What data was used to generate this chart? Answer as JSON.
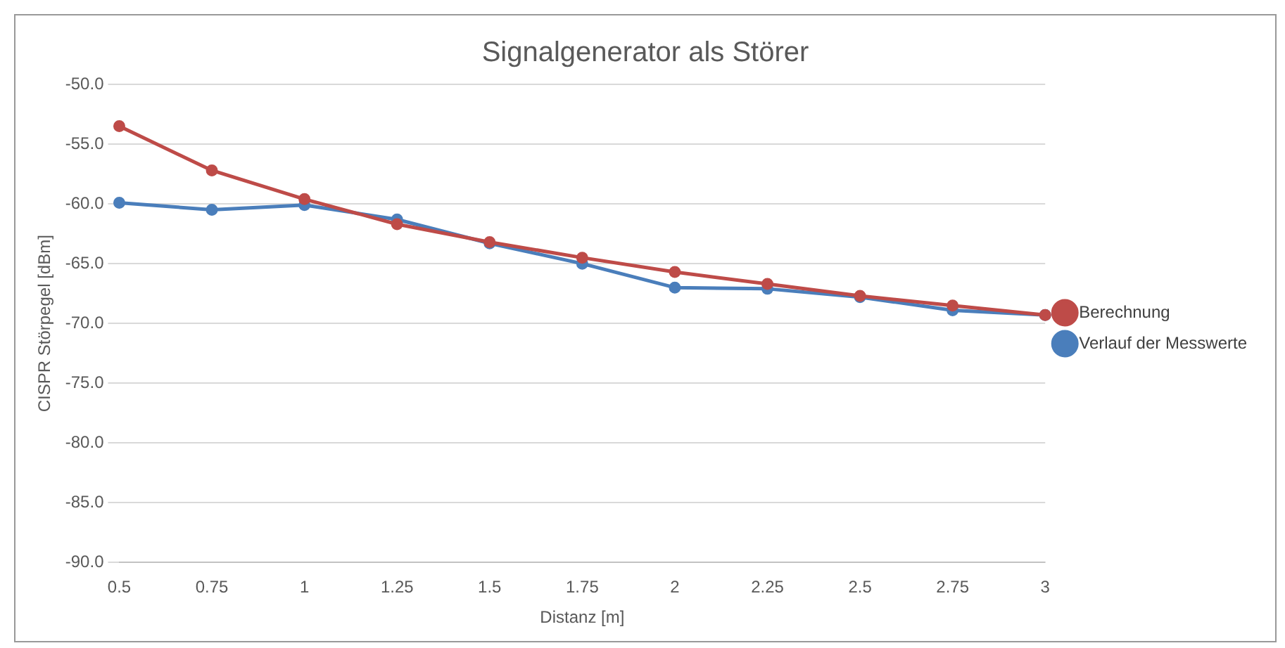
{
  "chart_data": {
    "type": "line",
    "title": "Signalgenerator als Störer",
    "xlabel": "Distanz [m]",
    "ylabel": "CISPR Störpegel [dBm]",
    "categories": [
      "0.5",
      "0.75",
      "1",
      "1.25",
      "1.5",
      "1.75",
      "2",
      "2.25",
      "2.5",
      "2.75",
      "3"
    ],
    "series": [
      {
        "name": "Verlauf der Messwerte",
        "color": "#4a7ebb",
        "values": [
          -59.9,
          -60.5,
          -60.1,
          -61.3,
          -63.3,
          -65.0,
          -67.0,
          -67.1,
          -67.8,
          -68.9,
          -69.3
        ]
      },
      {
        "name": "Berechnung",
        "color": "#be4b48",
        "values": [
          -53.5,
          -57.2,
          -59.6,
          -61.7,
          -63.2,
          -64.5,
          -65.7,
          -66.7,
          -67.7,
          -68.5,
          -69.3
        ]
      }
    ],
    "ylim": [
      -90,
      -50
    ],
    "yticks": [
      {
        "value": -90,
        "label": "-90.0"
      },
      {
        "value": -85,
        "label": "-85.0"
      },
      {
        "value": -80,
        "label": "-80.0"
      },
      {
        "value": -75,
        "label": "-75.0"
      },
      {
        "value": -70,
        "label": "-70.0"
      },
      {
        "value": -65,
        "label": "-65.0"
      },
      {
        "value": -60,
        "label": "-60.0"
      },
      {
        "value": -55,
        "label": "-55.0"
      },
      {
        "value": -50,
        "label": "-50.0"
      }
    ],
    "grid": "y",
    "legend": "right",
    "marker": "circle",
    "line_style": "solid"
  }
}
